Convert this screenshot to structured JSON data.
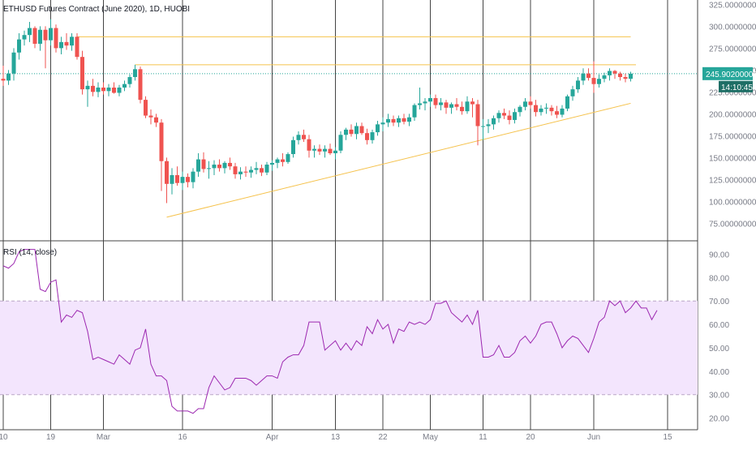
{
  "colors": {
    "up": "#26a69a",
    "down": "#ef5350",
    "trendline": "#f5c24c",
    "current_price_line": "#26a69a",
    "rsi_line": "#9c27b0",
    "rsi_band": "#f3e5fd",
    "rsi_band_border": "#b9a6c6",
    "grid": "#555555",
    "axis_text": "#787b86"
  },
  "chart_data": [
    {
      "type": "candlestick",
      "title": "ETHUSD Futures Contract (June 2020), 1D, HUOBI",
      "ylim": [
        55,
        330
      ],
      "y_ticks": [
        "325.00000000",
        "300.00000000",
        "275.00000000",
        "250.00000000",
        "225.00000000",
        "200.00000000",
        "175.00000000",
        "150.00000000",
        "125.00000000",
        "100.00000000",
        "75.00000000"
      ],
      "y_tick_values": [
        325,
        300,
        275,
        250,
        225,
        200,
        175,
        150,
        125,
        100,
        75
      ],
      "x_ticks": [
        {
          "label": "10",
          "index": 0
        },
        {
          "label": "19",
          "index": 9
        },
        {
          "label": "Mar",
          "index": 19
        },
        {
          "label": "16",
          "index": 34
        },
        {
          "label": "Apr",
          "index": 51
        },
        {
          "label": "13",
          "index": 63
        },
        {
          "label": "22",
          "index": 72
        },
        {
          "label": "May",
          "index": 81
        },
        {
          "label": "11",
          "index": 91
        },
        {
          "label": "20",
          "index": 100
        },
        {
          "label": "Jun",
          "index": 112
        },
        {
          "label": "15",
          "index": 126
        }
      ],
      "current_price": 245.902,
      "current_price_label": "245.90200000",
      "countdown_label": "14:10:45",
      "candles": [
        {
          "o": 240,
          "h": 255,
          "l": 232,
          "c": 238
        },
        {
          "o": 238,
          "h": 250,
          "l": 233,
          "c": 246
        },
        {
          "o": 246,
          "h": 275,
          "l": 238,
          "c": 270
        },
        {
          "o": 270,
          "h": 292,
          "l": 262,
          "c": 285
        },
        {
          "o": 285,
          "h": 295,
          "l": 278,
          "c": 290
        },
        {
          "o": 290,
          "h": 305,
          "l": 282,
          "c": 298
        },
        {
          "o": 298,
          "h": 300,
          "l": 275,
          "c": 280
        },
        {
          "o": 280,
          "h": 300,
          "l": 272,
          "c": 296
        },
        {
          "o": 296,
          "h": 300,
          "l": 252,
          "c": 284
        },
        {
          "o": 284,
          "h": 308,
          "l": 278,
          "c": 298
        },
        {
          "o": 298,
          "h": 302,
          "l": 270,
          "c": 275
        },
        {
          "o": 275,
          "h": 288,
          "l": 268,
          "c": 282
        },
        {
          "o": 282,
          "h": 292,
          "l": 273,
          "c": 278
        },
        {
          "o": 278,
          "h": 292,
          "l": 272,
          "c": 288
        },
        {
          "o": 288,
          "h": 292,
          "l": 262,
          "c": 265
        },
        {
          "o": 265,
          "h": 272,
          "l": 222,
          "c": 228
        },
        {
          "o": 228,
          "h": 238,
          "l": 208,
          "c": 232
        },
        {
          "o": 232,
          "h": 240,
          "l": 220,
          "c": 225
        },
        {
          "o": 225,
          "h": 236,
          "l": 219,
          "c": 230
        },
        {
          "o": 230,
          "h": 236,
          "l": 222,
          "c": 226
        },
        {
          "o": 226,
          "h": 234,
          "l": 220,
          "c": 230
        },
        {
          "o": 230,
          "h": 236,
          "l": 223,
          "c": 224
        },
        {
          "o": 224,
          "h": 233,
          "l": 220,
          "c": 230
        },
        {
          "o": 230,
          "h": 238,
          "l": 226,
          "c": 234
        },
        {
          "o": 234,
          "h": 245,
          "l": 230,
          "c": 242
        },
        {
          "o": 242,
          "h": 256,
          "l": 238,
          "c": 251
        },
        {
          "o": 251,
          "h": 254,
          "l": 212,
          "c": 216
        },
        {
          "o": 216,
          "h": 220,
          "l": 195,
          "c": 198
        },
        {
          "o": 198,
          "h": 205,
          "l": 188,
          "c": 196
        },
        {
          "o": 196,
          "h": 200,
          "l": 185,
          "c": 190
        },
        {
          "o": 190,
          "h": 194,
          "l": 112,
          "c": 146
        },
        {
          "o": 146,
          "h": 150,
          "l": 98,
          "c": 120
        },
        {
          "o": 120,
          "h": 138,
          "l": 108,
          "c": 130
        },
        {
          "o": 130,
          "h": 140,
          "l": 118,
          "c": 121
        },
        {
          "o": 121,
          "h": 134,
          "l": 113,
          "c": 128
        },
        {
          "o": 128,
          "h": 132,
          "l": 116,
          "c": 122
        },
        {
          "o": 122,
          "h": 138,
          "l": 115,
          "c": 134
        },
        {
          "o": 134,
          "h": 155,
          "l": 128,
          "c": 148
        },
        {
          "o": 148,
          "h": 156,
          "l": 133,
          "c": 137
        },
        {
          "o": 137,
          "h": 146,
          "l": 126,
          "c": 138
        },
        {
          "o": 138,
          "h": 147,
          "l": 130,
          "c": 142
        },
        {
          "o": 142,
          "h": 148,
          "l": 134,
          "c": 138
        },
        {
          "o": 138,
          "h": 146,
          "l": 132,
          "c": 144
        },
        {
          "o": 144,
          "h": 150,
          "l": 136,
          "c": 140
        },
        {
          "o": 140,
          "h": 144,
          "l": 126,
          "c": 131
        },
        {
          "o": 131,
          "h": 139,
          "l": 125,
          "c": 134
        },
        {
          "o": 134,
          "h": 140,
          "l": 128,
          "c": 133
        },
        {
          "o": 133,
          "h": 140,
          "l": 127,
          "c": 136
        },
        {
          "o": 136,
          "h": 145,
          "l": 131,
          "c": 138
        },
        {
          "o": 138,
          "h": 142,
          "l": 129,
          "c": 133
        },
        {
          "o": 133,
          "h": 145,
          "l": 130,
          "c": 142
        },
        {
          "o": 142,
          "h": 147,
          "l": 135,
          "c": 144
        },
        {
          "o": 144,
          "h": 150,
          "l": 138,
          "c": 148
        },
        {
          "o": 148,
          "h": 155,
          "l": 140,
          "c": 145
        },
        {
          "o": 145,
          "h": 156,
          "l": 143,
          "c": 154
        },
        {
          "o": 154,
          "h": 174,
          "l": 150,
          "c": 170
        },
        {
          "o": 170,
          "h": 180,
          "l": 165,
          "c": 176
        },
        {
          "o": 176,
          "h": 182,
          "l": 168,
          "c": 171
        },
        {
          "o": 171,
          "h": 176,
          "l": 150,
          "c": 158
        },
        {
          "o": 158,
          "h": 164,
          "l": 150,
          "c": 160
        },
        {
          "o": 160,
          "h": 165,
          "l": 153,
          "c": 157
        },
        {
          "o": 157,
          "h": 164,
          "l": 150,
          "c": 160
        },
        {
          "o": 160,
          "h": 166,
          "l": 153,
          "c": 155
        },
        {
          "o": 155,
          "h": 162,
          "l": 148,
          "c": 158
        },
        {
          "o": 158,
          "h": 180,
          "l": 155,
          "c": 176
        },
        {
          "o": 176,
          "h": 184,
          "l": 170,
          "c": 182
        },
        {
          "o": 182,
          "h": 188,
          "l": 174,
          "c": 177
        },
        {
          "o": 177,
          "h": 190,
          "l": 171,
          "c": 186
        },
        {
          "o": 186,
          "h": 190,
          "l": 176,
          "c": 178
        },
        {
          "o": 178,
          "h": 183,
          "l": 165,
          "c": 170
        },
        {
          "o": 170,
          "h": 182,
          "l": 166,
          "c": 179
        },
        {
          "o": 179,
          "h": 192,
          "l": 175,
          "c": 188
        },
        {
          "o": 188,
          "h": 196,
          "l": 180,
          "c": 190
        },
        {
          "o": 190,
          "h": 200,
          "l": 185,
          "c": 194
        },
        {
          "o": 194,
          "h": 198,
          "l": 186,
          "c": 190
        },
        {
          "o": 190,
          "h": 198,
          "l": 185,
          "c": 195
        },
        {
          "o": 195,
          "h": 200,
          "l": 188,
          "c": 191
        },
        {
          "o": 191,
          "h": 200,
          "l": 186,
          "c": 196
        },
        {
          "o": 196,
          "h": 212,
          "l": 192,
          "c": 210
        },
        {
          "o": 210,
          "h": 230,
          "l": 205,
          "c": 212
        },
        {
          "o": 212,
          "h": 218,
          "l": 204,
          "c": 214
        },
        {
          "o": 214,
          "h": 222,
          "l": 208,
          "c": 218
        },
        {
          "o": 218,
          "h": 222,
          "l": 206,
          "c": 210
        },
        {
          "o": 210,
          "h": 218,
          "l": 204,
          "c": 213
        },
        {
          "o": 213,
          "h": 216,
          "l": 200,
          "c": 207
        },
        {
          "o": 207,
          "h": 213,
          "l": 200,
          "c": 211
        },
        {
          "o": 211,
          "h": 218,
          "l": 204,
          "c": 208
        },
        {
          "o": 208,
          "h": 214,
          "l": 199,
          "c": 203
        },
        {
          "o": 203,
          "h": 220,
          "l": 200,
          "c": 214
        },
        {
          "o": 214,
          "h": 218,
          "l": 196,
          "c": 211
        },
        {
          "o": 211,
          "h": 216,
          "l": 164,
          "c": 186
        },
        {
          "o": 186,
          "h": 194,
          "l": 170,
          "c": 186
        },
        {
          "o": 186,
          "h": 194,
          "l": 178,
          "c": 188
        },
        {
          "o": 188,
          "h": 198,
          "l": 182,
          "c": 195
        },
        {
          "o": 195,
          "h": 204,
          "l": 190,
          "c": 201
        },
        {
          "o": 201,
          "h": 206,
          "l": 194,
          "c": 198
        },
        {
          "o": 198,
          "h": 204,
          "l": 188,
          "c": 193
        },
        {
          "o": 193,
          "h": 206,
          "l": 189,
          "c": 202
        },
        {
          "o": 202,
          "h": 210,
          "l": 197,
          "c": 208
        },
        {
          "o": 208,
          "h": 218,
          "l": 204,
          "c": 214
        },
        {
          "o": 214,
          "h": 220,
          "l": 206,
          "c": 210
        },
        {
          "o": 210,
          "h": 216,
          "l": 197,
          "c": 202
        },
        {
          "o": 202,
          "h": 210,
          "l": 198,
          "c": 206
        },
        {
          "o": 206,
          "h": 212,
          "l": 200,
          "c": 207
        },
        {
          "o": 207,
          "h": 210,
          "l": 198,
          "c": 203
        },
        {
          "o": 203,
          "h": 209,
          "l": 195,
          "c": 199
        },
        {
          "o": 199,
          "h": 210,
          "l": 196,
          "c": 206
        },
        {
          "o": 206,
          "h": 222,
          "l": 203,
          "c": 220
        },
        {
          "o": 220,
          "h": 232,
          "l": 215,
          "c": 228
        },
        {
          "o": 228,
          "h": 242,
          "l": 224,
          "c": 238
        },
        {
          "o": 238,
          "h": 252,
          "l": 233,
          "c": 246
        },
        {
          "o": 246,
          "h": 252,
          "l": 238,
          "c": 241
        },
        {
          "o": 241,
          "h": 260,
          "l": 224,
          "c": 234
        },
        {
          "o": 234,
          "h": 245,
          "l": 230,
          "c": 240
        },
        {
          "o": 240,
          "h": 247,
          "l": 236,
          "c": 244
        },
        {
          "o": 244,
          "h": 252,
          "l": 238,
          "c": 249
        },
        {
          "o": 249,
          "h": 250,
          "l": 240,
          "c": 246
        },
        {
          "o": 246,
          "h": 248,
          "l": 238,
          "c": 242
        },
        {
          "o": 242,
          "h": 246,
          "l": 236,
          "c": 240
        },
        {
          "o": 240,
          "h": 248,
          "l": 237,
          "c": 245.902
        }
      ],
      "trendlines": [
        {
          "from_index": 14,
          "to_index": 119,
          "price": 288
        },
        {
          "from_index": 25,
          "to_index": 120,
          "price": 256
        },
        {
          "from_index": 31,
          "price_start": 82,
          "to_index": 119,
          "price_end": 212
        }
      ]
    },
    {
      "type": "line",
      "title": "RSI (14, close)",
      "ylim": [
        15,
        95
      ],
      "y_ticks": [
        "90.00",
        "80.00",
        "70.00",
        "60.00",
        "50.00",
        "40.00",
        "30.00",
        "20.00"
      ],
      "y_tick_values": [
        90,
        80,
        70,
        60,
        50,
        40,
        30,
        20
      ],
      "band": [
        30,
        70
      ],
      "series": [
        {
          "values": [
            85,
            84,
            86,
            91,
            92,
            92,
            92,
            75,
            74,
            78,
            79,
            61,
            64,
            63,
            66,
            65,
            57,
            45,
            46,
            45,
            44,
            43,
            47,
            45,
            43,
            49,
            50,
            58,
            43,
            38,
            38,
            36,
            25,
            23,
            23,
            23,
            22,
            24,
            24,
            33,
            38,
            35,
            32,
            33,
            37,
            37,
            37,
            36,
            34,
            36,
            38,
            38,
            37,
            44,
            46,
            47,
            47,
            51,
            61,
            61,
            61,
            49,
            51,
            53,
            49,
            52,
            49,
            53,
            51,
            59,
            56,
            62,
            58,
            60,
            52,
            58,
            57,
            61,
            60,
            61,
            60,
            62,
            69,
            69,
            70,
            65,
            63,
            61,
            64,
            60,
            66,
            46,
            46,
            47,
            51,
            46,
            46,
            48,
            53,
            55,
            52,
            55,
            60,
            61,
            61,
            56,
            50,
            53,
            55,
            54,
            51,
            48,
            54,
            61,
            63,
            70,
            68,
            70,
            65,
            67,
            70,
            67,
            67,
            62,
            66
          ]
        }
      ]
    }
  ]
}
